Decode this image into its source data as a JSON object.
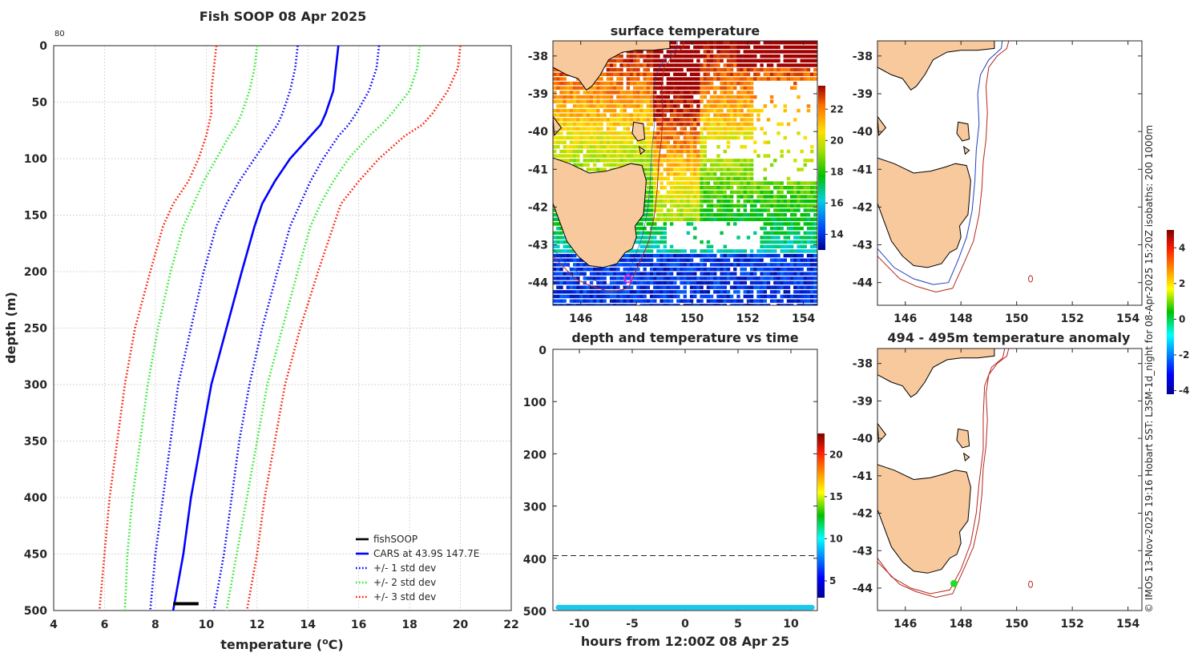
{
  "colors": {
    "land": "#f8c99c",
    "coast": "#000000",
    "iso200": "#1f3fbf",
    "iso1000": "#b5261e",
    "fishsoop": "#000000",
    "cars": "#0000ff",
    "sd1": "#0000ff",
    "sd2": "#2ee82e",
    "sd3": "#ff1a00",
    "anomaly_dots": "#1cc9ee",
    "vessel_marker": "#e020e0",
    "stn_marker": "#22dd22"
  },
  "chart_data": [
    {
      "type": "line",
      "id": "profile",
      "title": "Fish SOOP 08 Apr 2025",
      "corner_label": "80",
      "xlabel_main": "temperature (",
      "xlabel_sup": "o",
      "xlabel_end": "C)",
      "ylabel": "depth (m)",
      "xlim": [
        4,
        22
      ],
      "ylim": [
        0,
        500
      ],
      "xticks": [
        "4",
        "6",
        "8",
        "10",
        "12",
        "14",
        "16",
        "18",
        "20",
        "22"
      ],
      "yticks": [
        "0",
        "50",
        "100",
        "150",
        "200",
        "250",
        "300",
        "350",
        "400",
        "450",
        "500"
      ],
      "legend": [
        "fishSOOP",
        "CARS at 43.9S 147.7E",
        "+/- 1 std dev",
        "+/- 2 std dev",
        "+/- 3 std dev"
      ],
      "depth": [
        0,
        20,
        40,
        60,
        70,
        80,
        100,
        120,
        140,
        160,
        200,
        250,
        300,
        350,
        400,
        450,
        500
      ],
      "series": [
        {
          "name": "CARS",
          "style": "solid",
          "color": "cars",
          "temp": [
            15.2,
            15.1,
            15.0,
            14.7,
            14.5,
            14.1,
            13.3,
            12.7,
            12.2,
            11.9,
            11.4,
            10.8,
            10.2,
            9.8,
            9.4,
            9.1,
            8.7
          ]
        },
        {
          "name": "+1sd",
          "style": "dot",
          "color": "sd1",
          "temp": [
            16.8,
            16.7,
            16.4,
            15.9,
            15.6,
            15.2,
            14.6,
            14.1,
            13.7,
            13.3,
            12.8,
            12.2,
            11.7,
            11.3,
            11.0,
            10.7,
            10.3
          ]
        },
        {
          "name": "-1sd",
          "style": "dot",
          "color": "sd1",
          "temp": [
            13.6,
            13.5,
            13.3,
            13.0,
            12.8,
            12.5,
            11.9,
            11.3,
            10.8,
            10.4,
            9.9,
            9.4,
            8.9,
            8.6,
            8.3,
            8.0,
            7.8
          ]
        },
        {
          "name": "+2sd",
          "style": "dot",
          "color": "sd2",
          "temp": [
            18.4,
            18.3,
            18.0,
            17.3,
            16.9,
            16.4,
            15.6,
            15.0,
            14.5,
            14.1,
            13.6,
            13.0,
            12.4,
            12.0,
            11.6,
            11.2,
            10.8
          ]
        },
        {
          "name": "-2sd",
          "style": "dot",
          "color": "sd2",
          "temp": [
            12.0,
            11.9,
            11.7,
            11.4,
            11.2,
            10.9,
            10.4,
            9.9,
            9.5,
            9.1,
            8.6,
            8.1,
            7.7,
            7.4,
            7.1,
            6.9,
            6.8
          ]
        },
        {
          "name": "+3sd",
          "style": "dot",
          "color": "sd3",
          "temp": [
            20.0,
            19.9,
            19.5,
            18.9,
            18.5,
            17.8,
            16.8,
            16.0,
            15.3,
            15.0,
            14.4,
            13.7,
            13.1,
            12.7,
            12.3,
            12.0,
            11.6
          ]
        },
        {
          "name": "-3sd",
          "style": "dot",
          "color": "sd3",
          "temp": [
            10.4,
            10.3,
            10.2,
            10.2,
            10.1,
            10.0,
            9.7,
            9.3,
            8.7,
            8.3,
            7.8,
            7.2,
            6.8,
            6.5,
            6.2,
            6.0,
            5.8
          ]
        }
      ],
      "fishsoop": {
        "temp": [
          8.7,
          9.7
        ],
        "depth": [
          494,
          494
        ]
      }
    },
    {
      "type": "heatmap",
      "id": "surface",
      "title": "surface temperature",
      "xlim": [
        145,
        154.5
      ],
      "ylim": [
        -44.6,
        -37.6
      ],
      "xticks": [
        "146",
        "148",
        "150",
        "152",
        "154"
      ],
      "yticks": [
        "-38",
        "-39",
        "-40",
        "-41",
        "-42",
        "-43",
        "-44"
      ],
      "colorbar": {
        "ticks": [
          "14",
          "16",
          "18",
          "20",
          "22"
        ],
        "range": [
          13,
          23.5
        ]
      },
      "vessel": {
        "lon": 147.7,
        "lat": -43.9
      }
    },
    {
      "type": "scatter",
      "id": "timeseries",
      "title": "depth and temperature vs time",
      "xlabel": "hours from 12:00Z 08 Apr 25",
      "xlim": [
        -12.5,
        12.5
      ],
      "ylim": [
        0,
        500
      ],
      "xticks": [
        "-10",
        "-5",
        "0",
        "5",
        "10"
      ],
      "yticks": [
        "0",
        "100",
        "200",
        "300",
        "400",
        "500"
      ],
      "reference_depth": 395,
      "x_range": [
        -12,
        12
      ],
      "depth_value": 494,
      "colorbar": {
        "ticks": [
          "5",
          "10",
          "15",
          "20"
        ],
        "range": [
          3,
          22.5
        ]
      }
    },
    {
      "type": "map",
      "id": "bathy",
      "xlim": [
        145,
        154.5
      ],
      "ylim": [
        -44.6,
        -37.6
      ],
      "xticks": [
        "146",
        "148",
        "150",
        "152",
        "154"
      ],
      "yticks": [
        "-38",
        "-39",
        "-40",
        "-41",
        "-42",
        "-43",
        "-44"
      ]
    },
    {
      "type": "map",
      "id": "anomaly",
      "title": "494 - 495m temperature anomaly",
      "xlim": [
        145,
        154.5
      ],
      "ylim": [
        -44.6,
        -37.6
      ],
      "xticks": [
        "146",
        "148",
        "150",
        "152",
        "154"
      ],
      "yticks": [
        "-38",
        "-39",
        "-40",
        "-41",
        "-42",
        "-43",
        "-44"
      ],
      "colorbar": {
        "ticks": [
          "-4",
          "-2",
          "0",
          "2",
          "4"
        ],
        "range": [
          -4.2,
          5
        ]
      },
      "station": {
        "lon": 147.75,
        "lat": -43.88
      }
    }
  ],
  "side_label": "© IMOS 13-Nov-2025 19:16 Hobart SST: L3SM-1d_night for 08-Apr-2025 15:20Z isobaths: 200  1000m"
}
